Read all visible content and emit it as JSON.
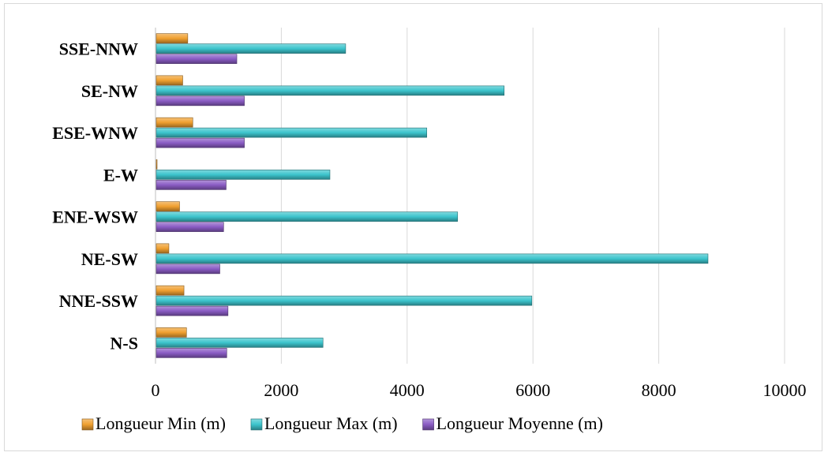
{
  "chart_data": {
    "type": "bar",
    "orientation": "horizontal",
    "categories": [
      "N-S",
      "NNE-SSW",
      "NE-SW",
      "ENE-WSW",
      "E-W",
      "ESE-WNW",
      "SE-NW",
      "SSE-NNW"
    ],
    "series": [
      {
        "name": "Longueur Min (m)",
        "color": "#f0a030",
        "values": [
          480,
          440,
          200,
          370,
          10,
          580,
          420,
          500
        ]
      },
      {
        "name": "Longueur Max (m)",
        "color": "#3cc4cc",
        "values": [
          2650,
          5970,
          8770,
          4790,
          2760,
          4300,
          5530,
          3010
        ]
      },
      {
        "name": "Longueur Moyenne (m)",
        "color": "#8a5cc4",
        "values": [
          1120,
          1140,
          1010,
          1070,
          1110,
          1400,
          1400,
          1280
        ]
      }
    ],
    "xticks": [
      0,
      2000,
      4000,
      6000,
      8000,
      10000
    ],
    "xlim": [
      0,
      10000
    ],
    "grid": true,
    "legend": "bottom",
    "title": "",
    "xlabel": "",
    "ylabel": ""
  }
}
